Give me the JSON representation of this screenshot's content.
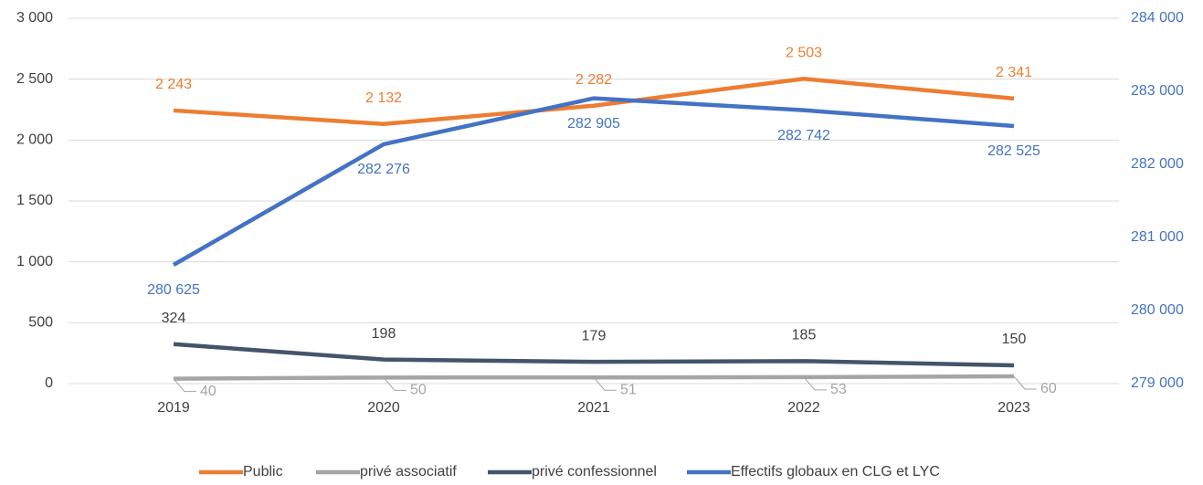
{
  "chart_data": {
    "type": "line",
    "categories": [
      "2019",
      "2020",
      "2021",
      "2022",
      "2023"
    ],
    "series": [
      {
        "name": "Public",
        "color": "#ED7D31",
        "values": [
          2243,
          2132,
          2282,
          2503,
          2341
        ],
        "value_labels": [
          "2 243",
          "2 132",
          "2 282",
          "2 503",
          "2 341"
        ]
      },
      {
        "name": "privé associatif",
        "color": "#A5A5A5",
        "values": [
          40,
          50,
          51,
          53,
          60
        ]
      },
      {
        "name": "privé confessionnel",
        "color": "#44546A",
        "values": [
          324,
          198,
          179,
          185,
          150
        ]
      },
      {
        "name": "Effectifs globaux en CLG et LYC",
        "color": "#4472C4",
        "axis": "y2",
        "values": [
          280625,
          282276,
          282905,
          282742,
          282525
        ],
        "value_labels": [
          "280 625",
          "282 276",
          "282 905",
          "282 742",
          "282 525"
        ]
      }
    ],
    "ylim": [
      0,
      3000
    ],
    "yticks": [
      0,
      500,
      {
        "value": 1000,
        "label": "1 000"
      },
      {
        "value": 1500,
        "label": "1 500"
      },
      {
        "value": 2000,
        "label": "2 000"
      },
      {
        "value": 2500,
        "label": "2 500"
      },
      {
        "value": 3000,
        "label": "3 000"
      }
    ],
    "y2lim": [
      279000,
      284000
    ],
    "y2ticks": [
      {
        "value": 279000,
        "label": "279 000"
      },
      {
        "value": 280000,
        "label": "280 000"
      },
      {
        "value": 281000,
        "label": "281 000"
      },
      {
        "value": 282000,
        "label": "282 000"
      },
      {
        "value": 283000,
        "label": "283 000"
      },
      {
        "value": 284000,
        "label": "284 000"
      }
    ],
    "grid": true,
    "legend": "bottom"
  }
}
